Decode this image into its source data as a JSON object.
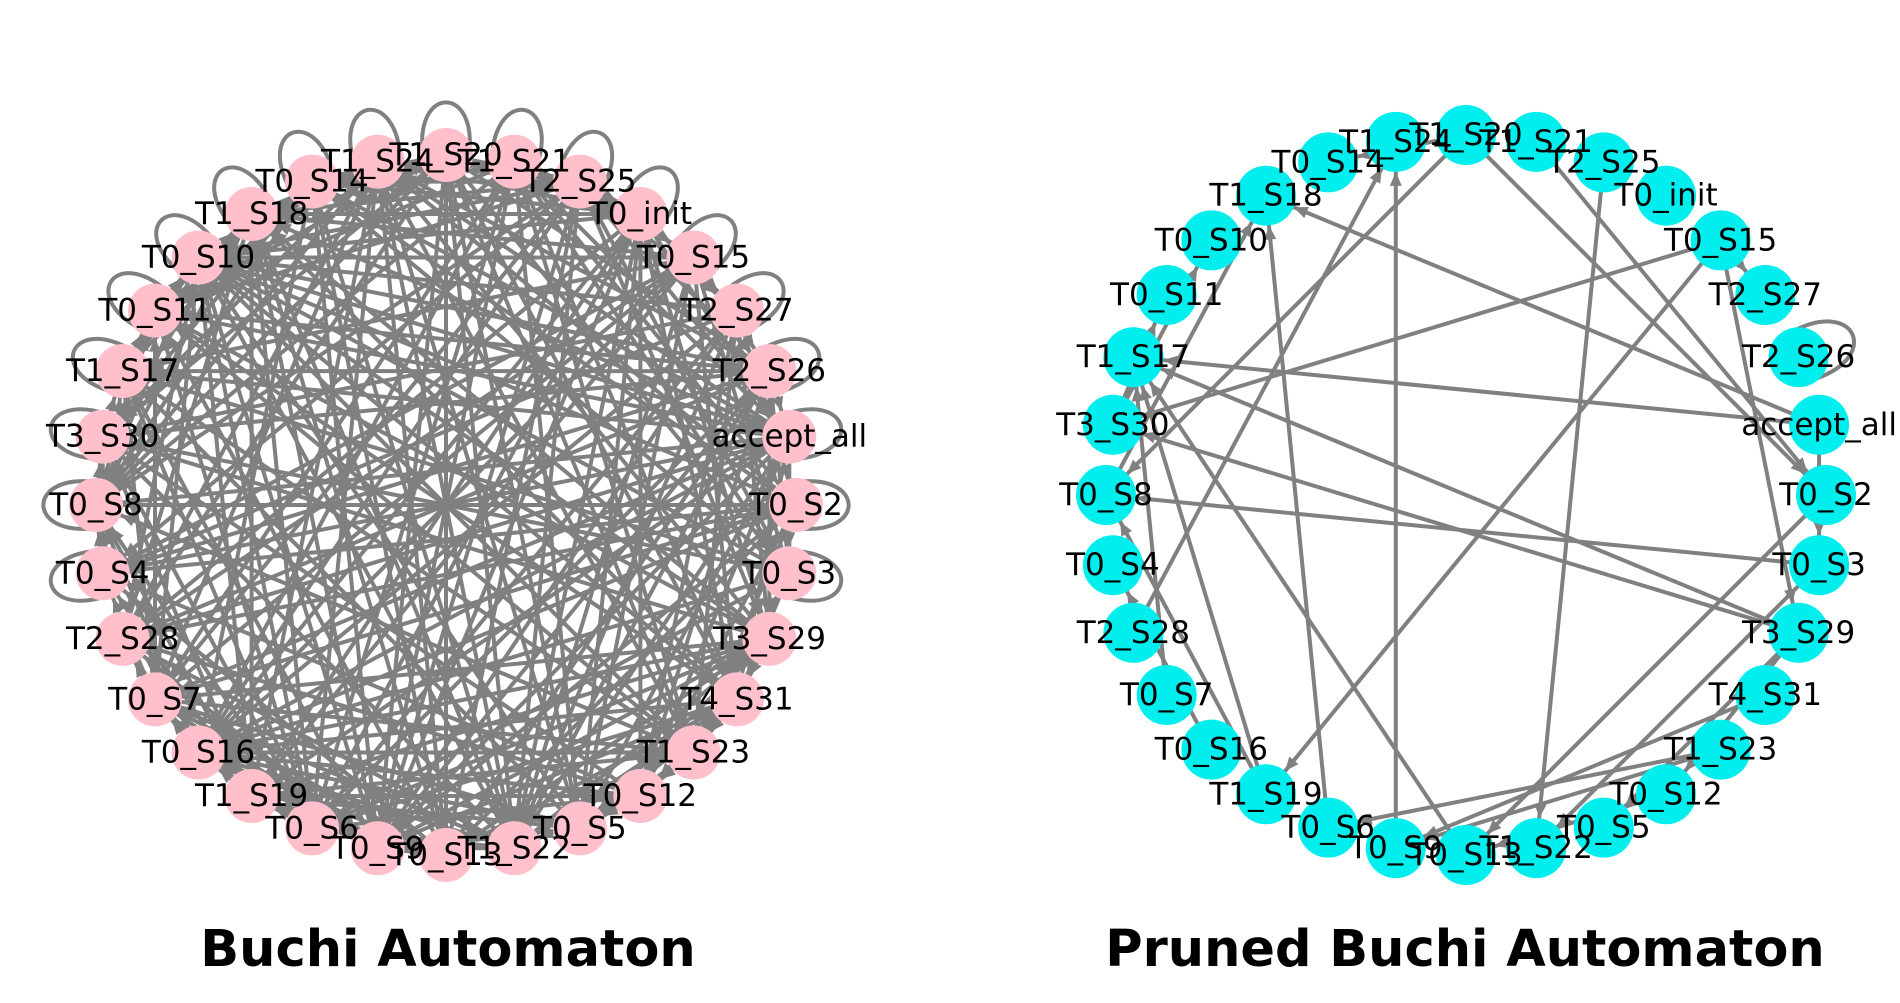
{
  "diagrams": [
    {
      "title": "Buchi Automaton",
      "node_color": "#ffc0cb",
      "edge_color": "#808080",
      "nodes": [
        "T1_S20",
        "T1_S21",
        "T2_S25",
        "T0_init",
        "T0_S15",
        "T2_S27",
        "T2_S26",
        "accept_all",
        "T0_S2",
        "T0_S3",
        "T3_S29",
        "T4_S31",
        "T1_S23",
        "T0_S12",
        "T0_S5",
        "T1_S22",
        "T0_S13",
        "T0_S9",
        "T0_S6",
        "T1_S19",
        "T0_S16",
        "T0_S7",
        "T2_S28",
        "T0_S4",
        "T0_S8",
        "T3_S30",
        "T1_S17",
        "T0_S11",
        "T0_S10",
        "T1_S18",
        "T0_S14",
        "T1_S24"
      ],
      "self_loop_nodes": [
        "T1_S20",
        "T1_S21",
        "T2_S25",
        "T0_init",
        "T0_S15",
        "T2_S27",
        "T2_S26",
        "accept_all",
        "T0_S2",
        "T0_S3",
        "T1_S24",
        "T0_S14",
        "T1_S18",
        "T0_S10",
        "T0_S11",
        "T1_S17",
        "T3_S30",
        "T0_S8",
        "T0_S4"
      ]
    },
    {
      "title": "Pruned Buchi Automaton",
      "node_color": "#00eeee",
      "edge_color": "#808080",
      "nodes": [
        "T1_S20",
        "T1_S21",
        "T2_S25",
        "T0_init",
        "T0_S15",
        "T2_S27",
        "T2_S26",
        "accept_all",
        "T0_S2",
        "T0_S3",
        "T3_S29",
        "T4_S31",
        "T1_S23",
        "T0_S12",
        "T0_S5",
        "T1_S22",
        "T0_S13",
        "T0_S9",
        "T0_S6",
        "T1_S19",
        "T0_S16",
        "T0_S7",
        "T2_S28",
        "T0_S4",
        "T0_S8",
        "T3_S30",
        "T1_S17",
        "T0_S11",
        "T0_S10",
        "T1_S18",
        "T0_S14",
        "T1_S24"
      ],
      "self_loop_nodes": [
        "T2_S26"
      ]
    }
  ]
}
